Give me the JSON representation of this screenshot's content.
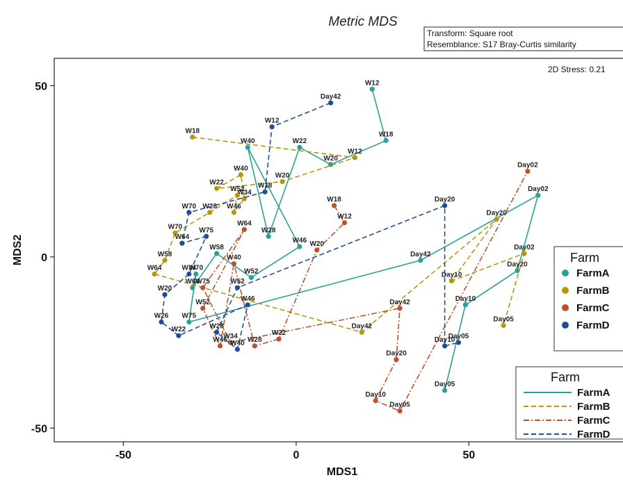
{
  "chart_data": {
    "type": "scatter",
    "title": "Metric MDS",
    "xlabel": "MDS1",
    "ylabel": "MDS2",
    "xlim": [
      -70,
      97
    ],
    "ylim": [
      -54,
      58
    ],
    "xticks": [
      -50,
      0,
      50
    ],
    "yticks": [
      -50,
      0,
      50
    ],
    "grid": false,
    "info_lines": [
      "Transform: Square root",
      "Resemblance: S17 Bray-Curtis similarity"
    ],
    "stress_label": "2D Stress: 0.21",
    "marker_legend": {
      "title": "Farm",
      "placement": "right"
    },
    "line_legend": {
      "title": "Farm",
      "placement": "bottom-right"
    },
    "series": [
      {
        "name": "FarmA",
        "color": "#2aa198",
        "line_style": "solid",
        "points": [
          {
            "label": "W12",
            "x": 22,
            "y": 49
          },
          {
            "label": "W18",
            "x": 26,
            "y": 34
          },
          {
            "label": "W20",
            "x": 10,
            "y": 27
          },
          {
            "label": "W22",
            "x": 1,
            "y": 32
          },
          {
            "label": "W28",
            "x": -8,
            "y": 6
          },
          {
            "label": "W40",
            "x": -14,
            "y": 32
          },
          {
            "label": "W46",
            "x": 1,
            "y": 3
          },
          {
            "label": "W52",
            "x": -13,
            "y": -6
          },
          {
            "label": "W58",
            "x": -23,
            "y": 1
          },
          {
            "label": "W64",
            "x": -30,
            "y": -9
          },
          {
            "label": "W70",
            "x": -29,
            "y": -5
          },
          {
            "label": "W75",
            "x": -31,
            "y": -19
          },
          {
            "label": "Day42",
            "x": 36,
            "y": -1
          },
          {
            "label": "Day02",
            "x": 70,
            "y": 18
          },
          {
            "label": "Day20",
            "x": 64,
            "y": -4
          },
          {
            "label": "Day10",
            "x": 49,
            "y": -14
          },
          {
            "label": "Day05",
            "x": 43,
            "y": -39
          }
        ]
      },
      {
        "name": "FarmB",
        "color": "#b8960c",
        "line_style": "dashed",
        "points": [
          {
            "label": "W18",
            "x": -30,
            "y": 35
          },
          {
            "label": "W12",
            "x": 17,
            "y": 29
          },
          {
            "label": "W20",
            "x": -4,
            "y": 22
          },
          {
            "label": "W22",
            "x": -23,
            "y": 20
          },
          {
            "label": "W40",
            "x": -16,
            "y": 24
          },
          {
            "label": "W34",
            "x": -15,
            "y": 17
          },
          {
            "label": "W46",
            "x": -18,
            "y": 13
          },
          {
            "label": "W52",
            "x": -17,
            "y": 18
          },
          {
            "label": "W28",
            "x": -25,
            "y": 13
          },
          {
            "label": "W70",
            "x": -35,
            "y": 7
          },
          {
            "label": "W58",
            "x": -38,
            "y": -1
          },
          {
            "label": "W64",
            "x": -41,
            "y": -5
          },
          {
            "label": "Day42",
            "x": 19,
            "y": -22
          },
          {
            "label": "Day20",
            "x": 58,
            "y": 11
          },
          {
            "label": "Day10",
            "x": 45,
            "y": -7
          },
          {
            "label": "Day02",
            "x": 66,
            "y": 1
          },
          {
            "label": "Day05",
            "x": 60,
            "y": -20
          }
        ]
      },
      {
        "name": "FarmC",
        "color": "#c0502a",
        "line_style": "dashdot",
        "points": [
          {
            "label": "W18",
            "x": 11,
            "y": 15
          },
          {
            "label": "W12",
            "x": 14,
            "y": 10
          },
          {
            "label": "W20",
            "x": 6,
            "y": 2
          },
          {
            "label": "W22",
            "x": -5,
            "y": -24
          },
          {
            "label": "W28",
            "x": -12,
            "y": -26
          },
          {
            "label": "W40",
            "x": -18,
            "y": -2
          },
          {
            "label": "W46",
            "x": -22,
            "y": -26
          },
          {
            "label": "W52",
            "x": -27,
            "y": -15
          },
          {
            "label": "W64",
            "x": -15,
            "y": 8
          },
          {
            "label": "W75",
            "x": -27,
            "y": -9
          },
          {
            "label": "W34",
            "x": -19,
            "y": -25
          },
          {
            "label": "Day42",
            "x": 30,
            "y": -15
          },
          {
            "label": "Day20",
            "x": 29,
            "y": -30
          },
          {
            "label": "Day10",
            "x": 23,
            "y": -42
          },
          {
            "label": "Day05",
            "x": 30,
            "y": -45
          },
          {
            "label": "Day02",
            "x": 67,
            "y": 25
          }
        ]
      },
      {
        "name": "FarmD",
        "color": "#1f4e96",
        "line_style": "dashed",
        "points": [
          {
            "label": "Day42",
            "x": 10,
            "y": 45
          },
          {
            "label": "W12",
            "x": -7,
            "y": 38
          },
          {
            "label": "W18",
            "x": -9,
            "y": 19
          },
          {
            "label": "W70",
            "x": -31,
            "y": 13
          },
          {
            "label": "W64",
            "x": -33,
            "y": 4
          },
          {
            "label": "W75",
            "x": -26,
            "y": 6
          },
          {
            "label": "W34",
            "x": -31,
            "y": -5
          },
          {
            "label": "W20",
            "x": -38,
            "y": -11
          },
          {
            "label": "W26",
            "x": -39,
            "y": -19
          },
          {
            "label": "W22",
            "x": -34,
            "y": -23
          },
          {
            "label": "W46",
            "x": -14,
            "y": -14
          },
          {
            "label": "W40",
            "x": -17,
            "y": -27
          },
          {
            "label": "W28",
            "x": -23,
            "y": -22
          },
          {
            "label": "W52",
            "x": -17,
            "y": -9
          },
          {
            "label": "Day20",
            "x": 43,
            "y": 15
          },
          {
            "label": "Day10",
            "x": 43,
            "y": -26
          },
          {
            "label": "Day05",
            "x": 47,
            "y": -25
          }
        ]
      }
    ]
  }
}
